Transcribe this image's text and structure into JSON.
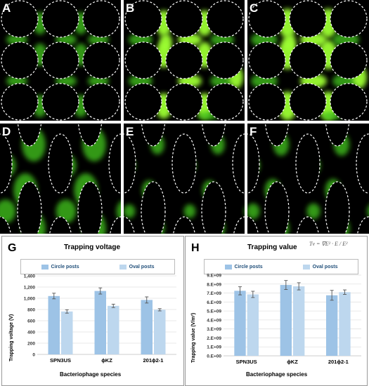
{
  "panels": {
    "A": "A",
    "B": "B",
    "C": "C",
    "D": "D",
    "E": "E",
    "F": "F"
  },
  "colors": {
    "background": "#000000",
    "fluorescence": "#3fbf1f",
    "fluorescence_bright": "#9cff30",
    "outline": "#ffffff",
    "circle_bar": "#9dc3e6",
    "oval_bar": "#bdd7ee",
    "error_bar": "#555555"
  },
  "chart_data": [
    {
      "type": "bar",
      "panel_label": "G",
      "title": "Trapping voltage",
      "categories": [
        "SPN3US",
        "ϕKZ",
        "201ϕ2-1"
      ],
      "series": [
        {
          "name": "Circle posts",
          "values": [
            1040,
            1130,
            970
          ],
          "errors": [
            50,
            55,
            55
          ]
        },
        {
          "name": "Oval posts",
          "values": [
            765,
            865,
            795
          ],
          "errors": [
            30,
            30,
            20
          ]
        }
      ],
      "ylim": [
        0,
        1400
      ],
      "yticks": [
        "0",
        "200",
        "400",
        "600",
        "800",
        "1,000",
        "1,200",
        "1,400"
      ],
      "ylabel": "Trapping voltage (V)",
      "xlabel": "Bacteriophage species",
      "legend": "top"
    },
    {
      "type": "bar",
      "panel_label": "H",
      "title": "Trapping value",
      "formula": "Tv = ∇E² · E / E²",
      "categories": [
        "SPN3US",
        "ϕKZ",
        "201ϕ2-1"
      ],
      "series": [
        {
          "name": "Circle posts",
          "values": [
            7250000000.0,
            7900000000.0,
            6750000000.0
          ],
          "errors": [
            450000000.0,
            500000000.0,
            550000000.0
          ]
        },
        {
          "name": "Oval posts",
          "values": [
            6850000000.0,
            7750000000.0,
            7100000000.0
          ],
          "errors": [
            350000000.0,
            400000000.0,
            250000000.0
          ]
        }
      ],
      "ylim": [
        0,
        9000000000.0
      ],
      "yticks": [
        "0.E+00",
        "1.E+09",
        "2.E+09",
        "3.E+09",
        "4.E+09",
        "5.E+09",
        "6.E+09",
        "7.E+09",
        "8.E+09",
        "9.E+09"
      ],
      "ylabel": "Trapping value (V/m²)",
      "xlabel": "Bacteriophage species",
      "legend": "top"
    }
  ]
}
